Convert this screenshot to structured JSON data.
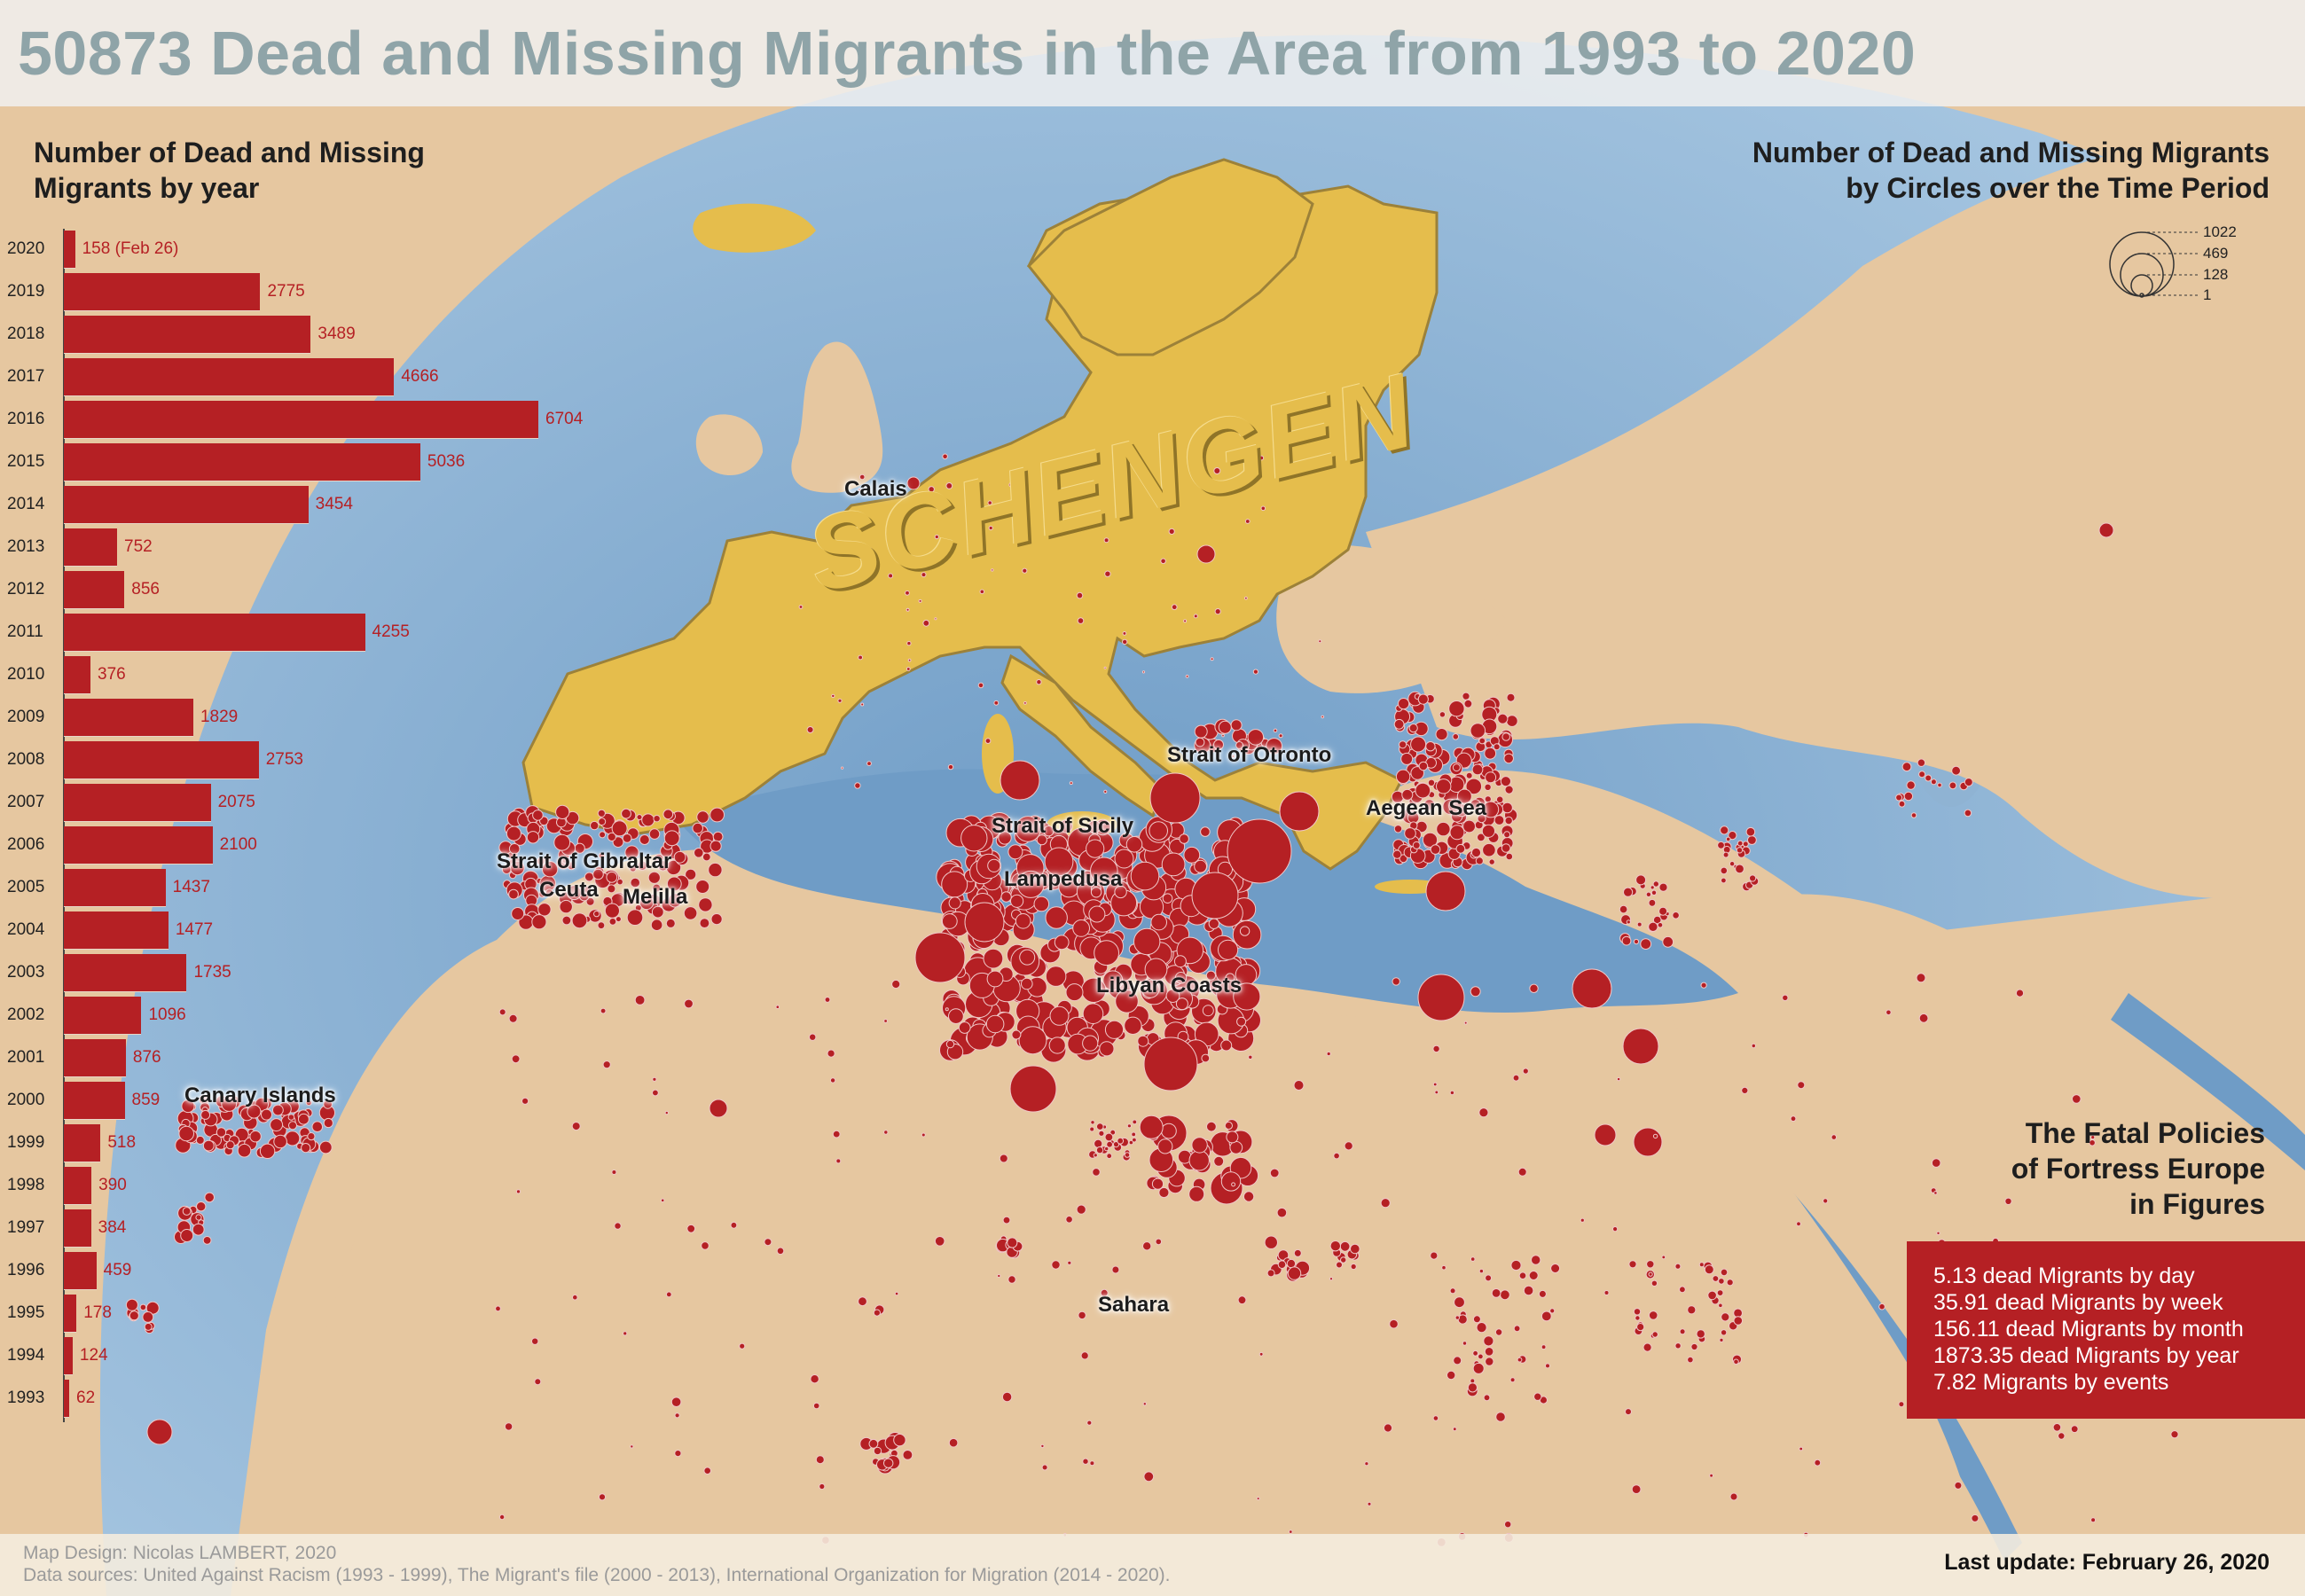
{
  "title": "50873 Dead and Missing Migrants in the Area from 1993 to 2020",
  "year_panel": {
    "heading_line1": "Number of Dead and Missing",
    "heading_line2": "Migrants by year"
  },
  "chart_data": {
    "type": "bar",
    "orientation": "horizontal",
    "categories": [
      "2020",
      "2019",
      "2018",
      "2017",
      "2016",
      "2015",
      "2014",
      "2013",
      "2012",
      "2011",
      "2010",
      "2009",
      "2008",
      "2007",
      "2006",
      "2005",
      "2004",
      "2003",
      "2002",
      "2001",
      "2000",
      "1999",
      "1998",
      "1997",
      "1996",
      "1995",
      "1994",
      "1993"
    ],
    "values": [
      158,
      2775,
      3489,
      4666,
      6704,
      5036,
      3454,
      752,
      856,
      4255,
      376,
      1829,
      2753,
      2075,
      2100,
      1437,
      1477,
      1735,
      1096,
      876,
      859,
      518,
      390,
      384,
      459,
      178,
      124,
      62
    ],
    "value_labels": [
      "158 (Feb 26)",
      "2775",
      "3489",
      "4666",
      "6704",
      "5036",
      "3454",
      "752",
      "856",
      "4255",
      "376",
      "1829",
      "2753",
      "2075",
      "2100",
      "1437",
      "1477",
      "1735",
      "1096",
      "876",
      "859",
      "518",
      "390",
      "384",
      "459",
      "178",
      "124",
      "62"
    ],
    "bar_color": "#b52024"
  },
  "circle_legend": {
    "heading_line1": "Number of Dead and Missing Migrants",
    "heading_line2": "by Circles over the Time Period",
    "values": [
      "1022",
      "469",
      "128",
      "1"
    ]
  },
  "map": {
    "zone_label": "SCHENGEN",
    "labels": {
      "calais": "Calais",
      "gibraltar": "Strait of Gibraltar",
      "ceuta": "Ceuta",
      "melilla": "Melilla",
      "sicily": "Strait of Sicily",
      "lampedusa": "Lampedusa",
      "libya": "Libyan Coasts",
      "otronto": "Strait of Otronto",
      "aegean": "Aegean Sea",
      "canary": "Canary Islands",
      "sahara": "Sahara"
    },
    "colors": {
      "sea": "#7aa3c8",
      "land": "#e6c7a0",
      "schengen": "#e5bd4c",
      "victims": "#b52024"
    }
  },
  "fatal": {
    "line1": "The Fatal Policies",
    "line2": "of Fortress Europe",
    "line3": "in Figures"
  },
  "stats": [
    "5.13 dead Migrants by day",
    "35.91 dead Migrants by week",
    "156.11 dead Migrants by month",
    "1873.35 dead Migrants by year",
    "7.82 Migrants by events"
  ],
  "footer": {
    "design": "Map Design: Nicolas LAMBERT, 2020",
    "sources": "Data sources: United Against Racism (1993 - 1999), The Migrant's file (2000 - 2013), International Organization for Migration (2014 - 2020).",
    "last_update": "Last update: February 26, 2020"
  }
}
